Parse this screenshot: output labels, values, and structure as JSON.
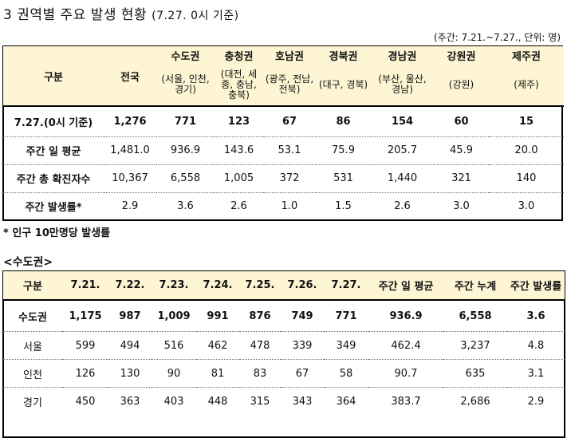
{
  "title": "3 권역별 주요 발생 현황",
  "title_sub": "(7.27. 0시 기준)",
  "unit_note": "(주간: 7.21.~7.27., 단위: 명)",
  "table1": {
    "corner": "구분",
    "national": "전국",
    "regions": [
      {
        "name": "수도권",
        "subs": "(서울, 인천, 경기)"
      },
      {
        "name": "충청권",
        "subs": "(대전, 세종, 충남, 충북)"
      },
      {
        "name": "호남권",
        "subs": "(광주, 전남, 전북)"
      },
      {
        "name": "경북권",
        "subs": "(대구, 경북)"
      },
      {
        "name": "경남권",
        "subs": "(부산, 울산, 경남)"
      },
      {
        "name": "강원권",
        "subs": "(강원)"
      },
      {
        "name": "제주권",
        "subs": "(제주)"
      }
    ],
    "rows": [
      {
        "label": "7.27.(0시 기준)",
        "values": [
          "1,276",
          "771",
          "123",
          "67",
          "86",
          "154",
          "60",
          "15"
        ]
      },
      {
        "label": "주간 일 평균",
        "values": [
          "1,481.0",
          "936.9",
          "143.6",
          "53.1",
          "75.9",
          "205.7",
          "45.9",
          "20.0"
        ]
      },
      {
        "label": "주간 총 확진자수",
        "values": [
          "10,367",
          "6,558",
          "1,005",
          "372",
          "531",
          "1,440",
          "321",
          "140"
        ]
      },
      {
        "label": "주간 발생률*",
        "values": [
          "2.9",
          "3.6",
          "2.6",
          "1.0",
          "1.5",
          "2.6",
          "3.0",
          "3.0"
        ]
      }
    ]
  },
  "footnote": "* 인구 10만명당 발생률",
  "section2_title": "<수도권>",
  "table2": {
    "headers": [
      "구분",
      "7.21.",
      "7.22.",
      "7.23.",
      "7.24.",
      "7.25.",
      "7.26.",
      "7.27.",
      "주간 일 평균",
      "주간 누계",
      "주간 발생률"
    ],
    "rows": [
      {
        "label": "수도권",
        "values": [
          "1,175",
          "987",
          "1,009",
          "991",
          "876",
          "749",
          "771",
          "936.9",
          "6,558",
          "3.6"
        ]
      },
      {
        "label": "서울",
        "values": [
          "599",
          "494",
          "516",
          "462",
          "478",
          "339",
          "349",
          "462.4",
          "3,237",
          "4.8"
        ]
      },
      {
        "label": "인천",
        "values": [
          "126",
          "130",
          "90",
          "81",
          "83",
          "67",
          "58",
          "90.7",
          "635",
          "3.1"
        ]
      },
      {
        "label": "경기",
        "values": [
          "450",
          "363",
          "403",
          "448",
          "315",
          "343",
          "364",
          "383.7",
          "2,686",
          "2.9"
        ]
      }
    ]
  }
}
